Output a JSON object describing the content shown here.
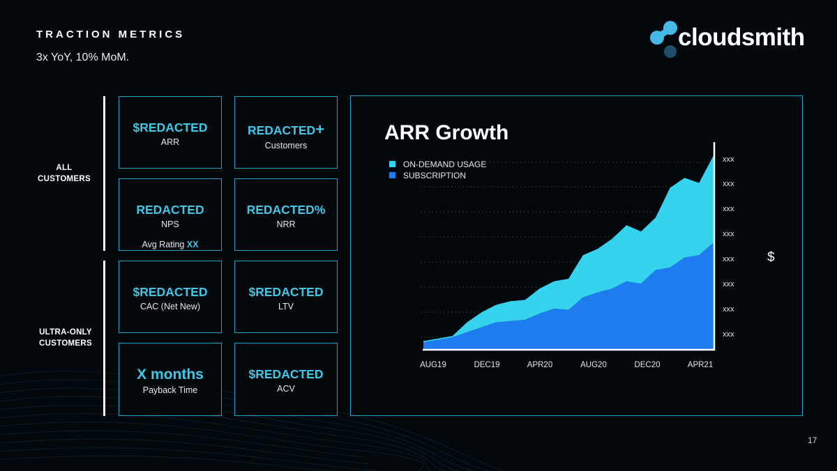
{
  "header": {
    "title": "TRACTION METRICS",
    "subtitle": "3x YoY, 10% MoM."
  },
  "brand": {
    "name": "cloudsmith",
    "accent": "#3fc8e6",
    "logo_colors": [
      "#46b9e8",
      "#1f4e6a"
    ]
  },
  "groups": [
    {
      "label_line1": "ALL",
      "label_line2": "CUSTOMERS"
    },
    {
      "label_line1": "ULTRA-ONLY",
      "label_line2": "CUSTOMERS"
    }
  ],
  "metrics": [
    {
      "value": "$REDACTED",
      "label": "ARR"
    },
    {
      "value": "REDACTED",
      "plus": "+",
      "label": "Customers"
    },
    {
      "value": "REDACTED",
      "label": "NPS",
      "extra_label": "Avg Rating",
      "extra_value": "XX"
    },
    {
      "value": "REDACTED%",
      "label": "NRR"
    },
    {
      "value": "$REDACTED",
      "label": "CAC (Net New)"
    },
    {
      "value": "$REDACTED",
      "label": "LTV"
    },
    {
      "value": "X months",
      "label": "Payback Time"
    },
    {
      "value": "$REDACTED",
      "label": "ACV"
    }
  ],
  "chart_data": {
    "type": "area",
    "stacked": true,
    "title": "ARR Growth",
    "ylabel": "$",
    "xlabel": "",
    "x_ticks": [
      "AUG19",
      "DEC19",
      "APR20",
      "AUG20",
      "DEC20",
      "APR21"
    ],
    "y_ticks": [
      "xxx",
      "xxx",
      "xxx",
      "xxx",
      "xxx",
      "xxx",
      "xxx",
      "xxx"
    ],
    "ylim": [
      0,
      8
    ],
    "legend_position": "top-left",
    "grid": true,
    "x": [
      0,
      1,
      2,
      3,
      4,
      5,
      6,
      7,
      8,
      9,
      10,
      11,
      12,
      13,
      14,
      15,
      16,
      17,
      18,
      19,
      20
    ],
    "series": [
      {
        "name": "ON-DEMAND USAGE",
        "color": "#35d3ee",
        "values": [
          0.05,
          0.05,
          0.05,
          0.4,
          0.6,
          0.7,
          0.8,
          0.8,
          1.0,
          1.1,
          1.25,
          1.7,
          1.75,
          2.0,
          2.25,
          2.1,
          2.1,
          3.2,
          3.2,
          2.9,
          3.5
        ]
      },
      {
        "name": "SUBSCRIPTION",
        "color": "#1f7cf0",
        "values": [
          0.3,
          0.4,
          0.5,
          0.7,
          0.9,
          1.1,
          1.15,
          1.2,
          1.45,
          1.65,
          1.6,
          2.1,
          2.3,
          2.45,
          2.75,
          2.65,
          3.2,
          3.3,
          3.7,
          3.8,
          4.3
        ]
      }
    ]
  },
  "footer": {
    "page_number": "17"
  }
}
